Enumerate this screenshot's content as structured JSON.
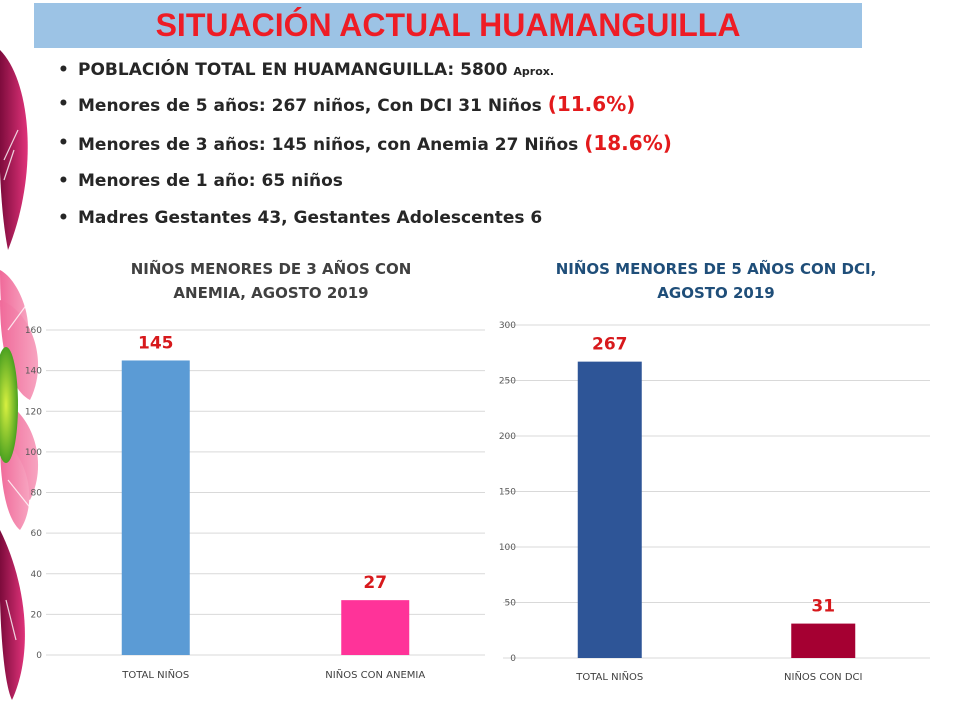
{
  "title": "SITUACIÓN ACTUAL HUAMANGUILLA",
  "bullets": {
    "b1_main": "POBLACIÓN TOTAL EN HUAMANGUILLA: 5800",
    "b1_small": "Aprox.",
    "b2_main": "Menores de 5 años: 267 niños, Con DCI 31 Niños",
    "b2_pct": "(11.6%)",
    "b3_main": "Menores de 3 años: 145 niños, con Anemia 27 Niños",
    "b3_pct": "(18.6%)",
    "b4": "Menores de 1 año: 65 niños",
    "b5": "Madres Gestantes 43, Gestantes Adolescentes 6"
  },
  "colors": {
    "title_bg": "#9cc3e5",
    "title_text": "#ee1c25",
    "percent": "#e31a1c",
    "data_label": "#d7191c"
  },
  "chart_data": [
    {
      "type": "bar",
      "title_lines": [
        "NIÑOS MENORES DE 3 AÑOS CON",
        "ANEMIA, AGOSTO 2019"
      ],
      "title_color": "#404040",
      "categories": [
        "TOTAL NIÑOS",
        "NIÑOS CON ANEMIA"
      ],
      "values": [
        145,
        27
      ],
      "bar_colors": [
        "#5b9bd5",
        "#ff3399"
      ],
      "data_labels": [
        "145",
        "27"
      ],
      "ylim": [
        0,
        160
      ],
      "yticks": [
        0,
        20,
        40,
        60,
        80,
        100,
        120,
        140,
        160
      ],
      "ytick_labels": [
        "0",
        "20",
        "40",
        "60",
        "80",
        "100",
        "120",
        "140",
        "160"
      ],
      "grid": true,
      "xlabel": "",
      "ylabel": ""
    },
    {
      "type": "bar",
      "title_lines": [
        "NIÑOS MENORES DE 5 AÑOS CON DCI,",
        "AGOSTO 2019"
      ],
      "title_color": "#1f4e79",
      "categories": [
        "TOTAL NIÑOS",
        "NIÑOS CON DCI"
      ],
      "values": [
        267,
        31
      ],
      "bar_colors": [
        "#2e5597",
        "#a50032"
      ],
      "data_labels": [
        "267",
        "31"
      ],
      "ylim": [
        0,
        300
      ],
      "yticks": [
        0,
        50,
        100,
        150,
        200,
        250,
        300
      ],
      "ytick_labels": [
        "0",
        "50",
        "100",
        "150",
        "200",
        "250",
        "300"
      ],
      "grid": true,
      "xlabel": "",
      "ylabel": ""
    }
  ]
}
